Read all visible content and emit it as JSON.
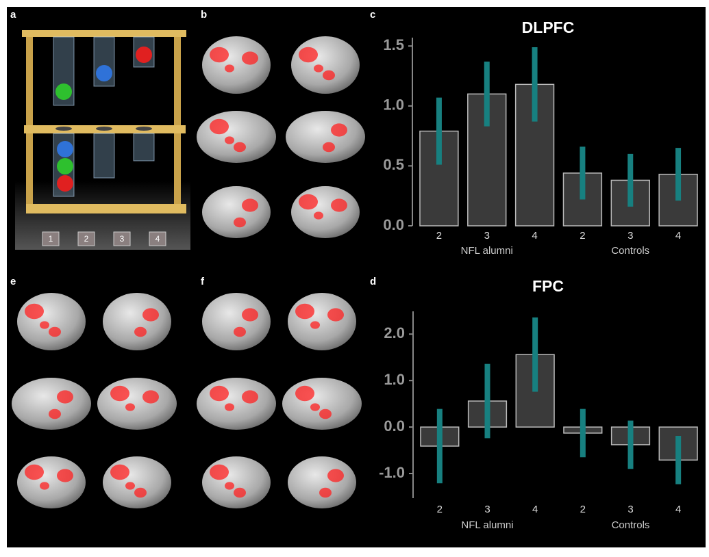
{
  "panels": {
    "labels": [
      "a",
      "b",
      "e",
      "f"
    ],
    "pegs": [
      "1",
      "2",
      "3",
      "4"
    ]
  },
  "chart_data": [
    {
      "type": "bar",
      "panel_label": "c",
      "title": "DLPFC",
      "categories": [
        "2",
        "3",
        "4",
        "2",
        "3",
        "4"
      ],
      "group_labels": [
        "NFL alumni",
        "Controls"
      ],
      "values": [
        0.79,
        1.1,
        1.18,
        0.44,
        0.38,
        0.43
      ],
      "errors": [
        0.28,
        0.27,
        0.31,
        0.22,
        0.22,
        0.22
      ],
      "color": "#3a3a3a",
      "error_color": "#178080",
      "ylim": [
        0,
        1.57
      ],
      "yticks": [
        {
          "value": 0,
          "label": "0.0"
        },
        0.5,
        {
          "value": 1,
          "label": "1.0"
        },
        1.5
      ]
    },
    {
      "type": "bar",
      "panel_label": "d",
      "title": "FPC",
      "categories": [
        "2",
        "3",
        "4",
        "2",
        "3",
        "4"
      ],
      "group_labels": [
        "NFL alumni",
        "Controls"
      ],
      "values": [
        -0.41,
        0.56,
        1.56,
        -0.13,
        -0.38,
        -0.71
      ],
      "errors": [
        0.8,
        0.8,
        0.8,
        0.52,
        0.52,
        0.52
      ],
      "color": "#3a3a3a",
      "error_color": "#178080",
      "ylim": [
        -1.53,
        2.49
      ],
      "yticks": [
        {
          "value": -1,
          "label": "-1.0"
        },
        {
          "value": 0,
          "label": "0.0"
        },
        {
          "value": 1,
          "label": "1.0"
        },
        {
          "value": 2,
          "label": "2.0"
        }
      ]
    }
  ]
}
